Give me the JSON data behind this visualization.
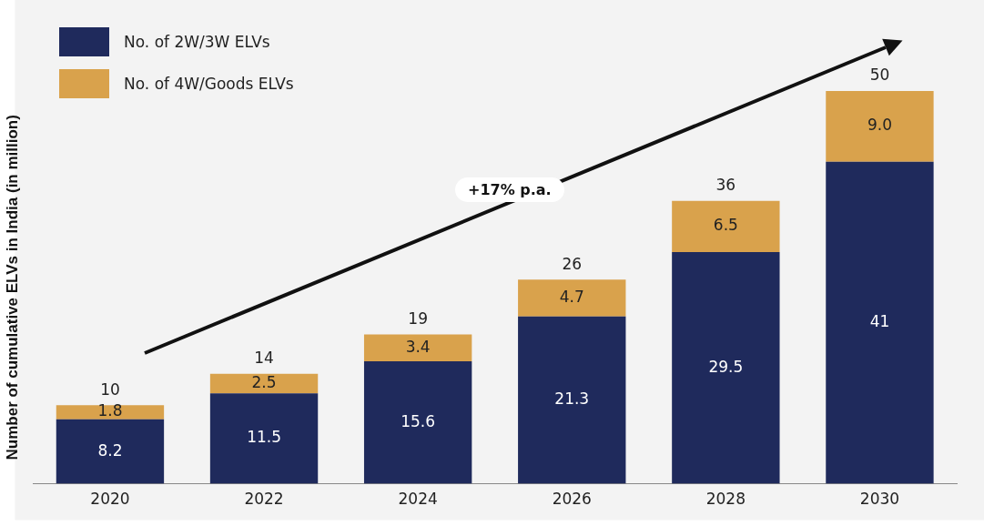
{
  "chart_data": {
    "type": "bar",
    "stacked": true,
    "ylabel": "Number of cumulative ELVs in India (in million)",
    "categories": [
      "2020",
      "2022",
      "2024",
      "2026",
      "2028",
      "2030"
    ],
    "series": [
      {
        "name": "No. of 2W/3W ELVs",
        "color": "#1f2a5c",
        "values": [
          8.2,
          11.5,
          15.6,
          21.3,
          29.5,
          41
        ],
        "value_labels": [
          "8.2",
          "11.5",
          "15.6",
          "21.3",
          "29.5",
          "41"
        ]
      },
      {
        "name": "No. of 4W/Goods ELVs",
        "color": "#d9a24c",
        "values": [
          1.8,
          2.5,
          3.4,
          4.7,
          6.5,
          9.0
        ],
        "value_labels": [
          "1.8",
          "2.5",
          "3.4",
          "4.7",
          "6.5",
          "9.0"
        ]
      }
    ],
    "totals": [
      "10",
      "14",
      "19",
      "26",
      "36",
      "50"
    ],
    "annotations": [
      "+17% p.a."
    ],
    "legend": "top left",
    "grid": false
  }
}
